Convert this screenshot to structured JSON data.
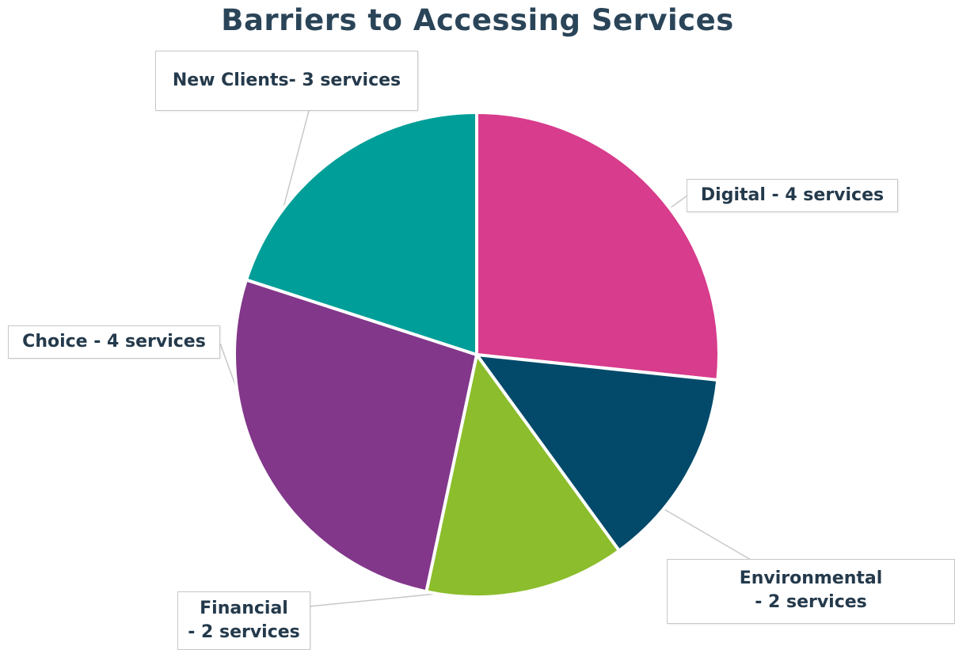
{
  "chart_data": {
    "type": "pie",
    "title": "Barriers to Accessing Services",
    "slices": [
      {
        "label": "Digital",
        "value": 4,
        "color": "#d83c8c",
        "callout": [
          "Digital  - 4 services"
        ]
      },
      {
        "label": "Environmental",
        "value": 2,
        "color": "#034a6a",
        "callout": [
          "Environmental",
          "- 2 services"
        ]
      },
      {
        "label": "Financial",
        "value": 2,
        "color": "#8cbd2c",
        "callout": [
          "Financial",
          "- 2 services"
        ]
      },
      {
        "label": "Choice",
        "value": 4,
        "color": "#82378a",
        "callout": [
          "Choice - 4 services"
        ]
      },
      {
        "label": "New Clients",
        "value": 3,
        "color": "#009e98",
        "callout": [
          "New Clients- 3 services"
        ]
      }
    ]
  }
}
